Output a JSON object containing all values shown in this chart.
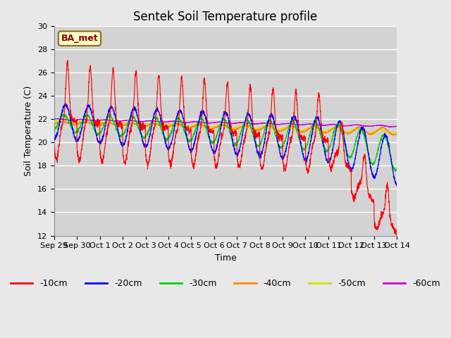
{
  "title": "Sentek Soil Temperature profile",
  "xlabel": "Time",
  "ylabel": "Soil Temperature (C)",
  "ylim": [
    12,
    30
  ],
  "yticks": [
    12,
    14,
    16,
    18,
    20,
    22,
    24,
    26,
    28,
    30
  ],
  "annotation_text": "BA_met",
  "fig_facecolor": "#e8e8e8",
  "ax_facecolor": "#d3d3d3",
  "grid_color": "#ffffff",
  "colors": {
    "-10cm": "#ff0000",
    "-20cm": "#0000ff",
    "-30cm": "#00cc00",
    "-40cm": "#ff8800",
    "-50cm": "#dddd00",
    "-60cm": "#cc00cc"
  },
  "x_tick_labels": [
    "Sep 29",
    "Sep 30",
    "Oct 1",
    "Oct 2",
    "Oct 3",
    "Oct 4",
    "Oct 5",
    "Oct 6",
    "Oct 7",
    "Oct 8",
    "Oct 9",
    "Oct 10",
    "Oct 11",
    "Oct 12",
    "Oct 13",
    "Oct 14"
  ],
  "x_tick_positions": [
    0,
    1,
    2,
    3,
    4,
    5,
    6,
    7,
    8,
    9,
    10,
    11,
    12,
    13,
    14,
    15
  ]
}
